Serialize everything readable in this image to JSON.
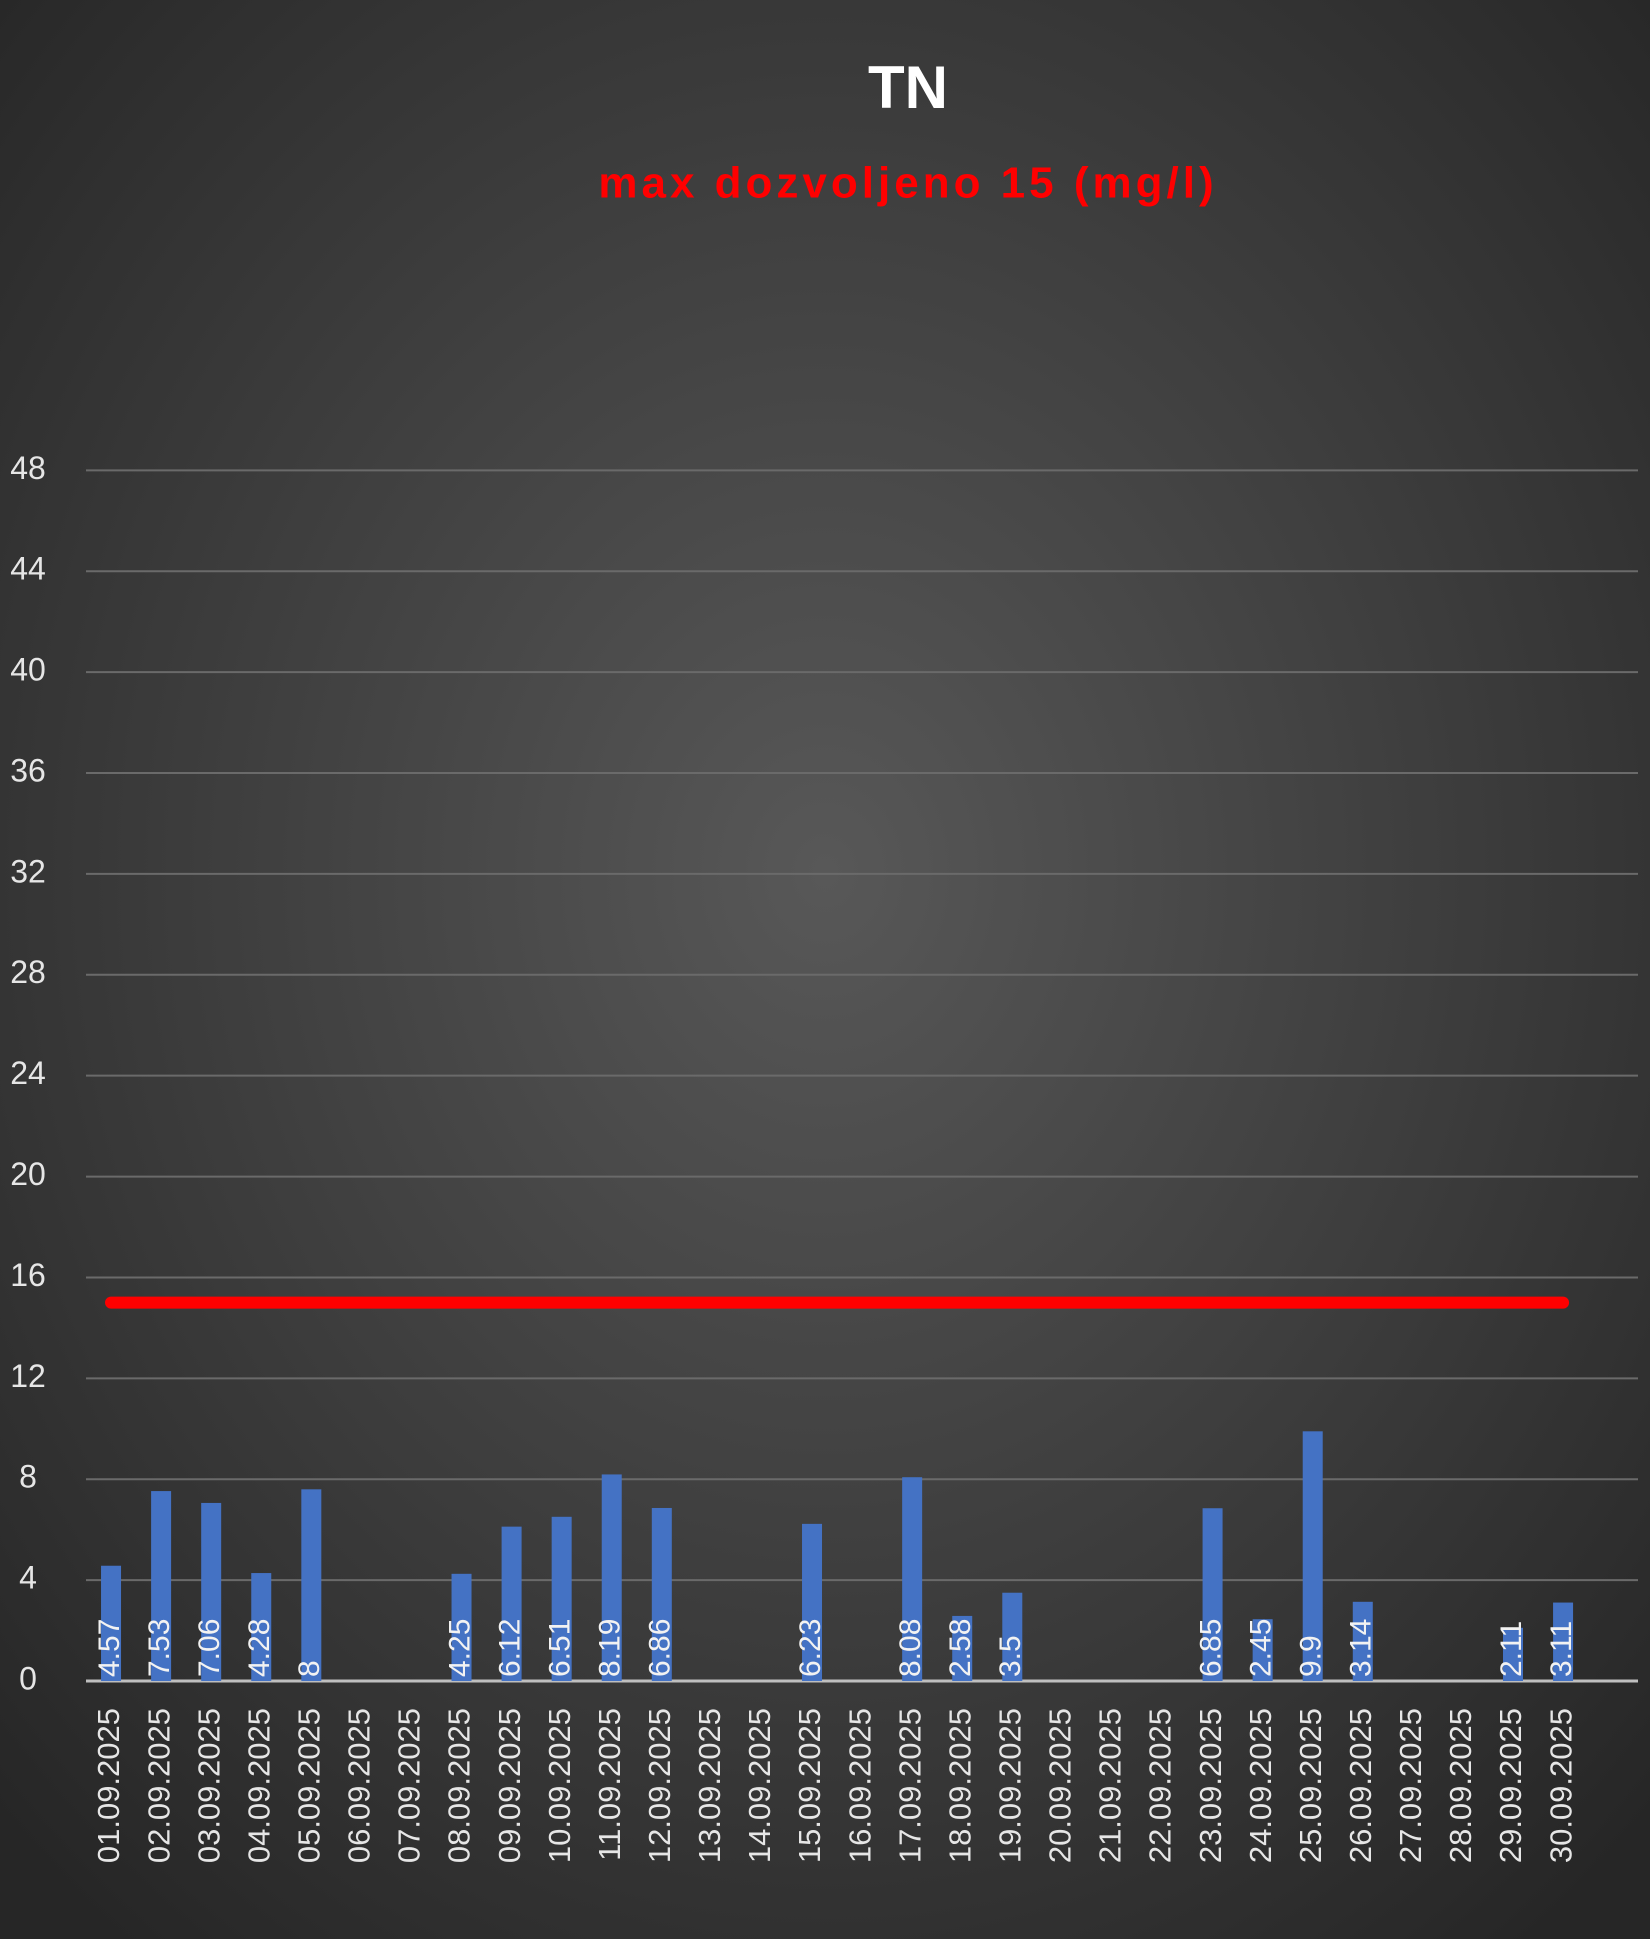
{
  "chart_data": {
    "type": "bar",
    "title": "TN",
    "subtitle": "max dozvoljeno 15 (mg/l)",
    "categories": [
      "01.09.2025",
      "02.09.2025",
      "03.09.2025",
      "04.09.2025",
      "05.09.2025",
      "06.09.2025",
      "07.09.2025",
      "08.09.2025",
      "09.09.2025",
      "10.09.2025",
      "11.09.2025",
      "12.09.2025",
      "13.09.2025",
      "14.09.2025",
      "15.09.2025",
      "16.09.2025",
      "17.09.2025",
      "18.09.2025",
      "19.09.2025",
      "20.09.2025",
      "21.09.2025",
      "22.09.2025",
      "23.09.2025",
      "24.09.2025",
      "25.09.2025",
      "26.09.2025",
      "27.09.2025",
      "28.09.2025",
      "29.09.2025",
      "30.09.2025"
    ],
    "series": [
      {
        "type": "bar",
        "color": "#4472c4",
        "values": [
          4.57,
          7.53,
          7.06,
          4.28,
          7.6,
          null,
          null,
          4.25,
          6.12,
          6.51,
          8.19,
          6.86,
          null,
          null,
          6.23,
          null,
          8.08,
          2.58,
          3.5,
          null,
          null,
          null,
          6.85,
          2.45,
          9.9,
          3.14,
          null,
          null,
          2.11,
          3.11
        ],
        "value_labels": [
          "4.57",
          "7.53",
          "7.06",
          "4.28",
          "8",
          null,
          null,
          "4.25",
          "6.12",
          "6.51",
          "8.19",
          "6.86",
          null,
          null,
          "6.23",
          null,
          "8.08",
          "2.58",
          "3.5",
          null,
          null,
          null,
          "6.85",
          "2.45",
          "9.9",
          "3.14",
          null,
          null,
          "2.11",
          "3.11"
        ]
      },
      {
        "type": "line",
        "color": "#ff0000",
        "values": [
          15,
          15,
          15,
          15,
          15,
          15,
          15,
          15,
          15,
          15,
          15,
          15,
          15,
          15,
          15,
          15,
          15,
          15,
          15,
          15,
          15,
          15,
          15,
          15,
          15,
          15,
          15,
          15,
          15,
          15
        ]
      }
    ],
    "ylim": [
      0,
      49.6
    ],
    "yticks": [
      0,
      4,
      8,
      12,
      16,
      20,
      24,
      28,
      32,
      36,
      40,
      44,
      48
    ],
    "grid": true
  }
}
